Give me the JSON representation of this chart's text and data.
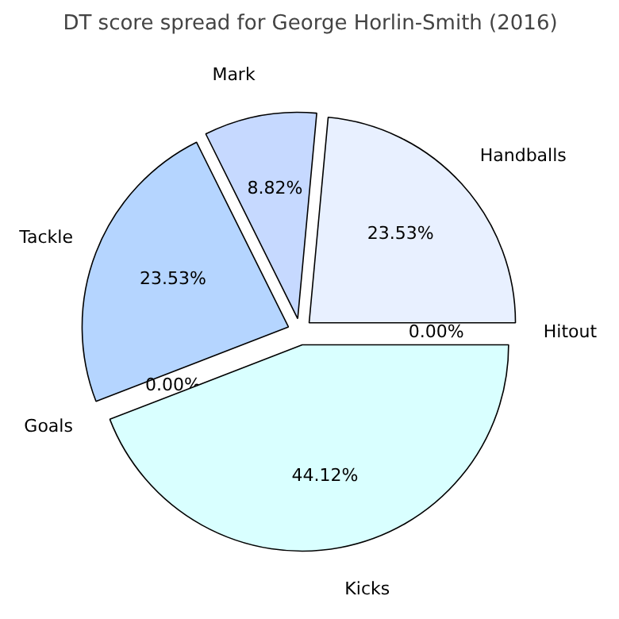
{
  "chart_data": {
    "type": "pie",
    "title": "DT score spread for George Horlin-Smith (2016)",
    "categories": [
      "Hitout",
      "Handballs",
      "Mark",
      "Tackle",
      "Goals",
      "Kicks"
    ],
    "values": [
      0.0,
      23.53,
      8.82,
      23.53,
      0.0,
      44.12
    ],
    "colors": [
      "#f0f0ff",
      "#e8f0ff",
      "#c6d9ff",
      "#b5d5ff",
      "#c0e0ff",
      "#d9ffff"
    ],
    "value_labels": [
      "0.00%",
      "23.53%",
      "8.82%",
      "23.53%",
      "0.00%",
      "44.12%"
    ]
  }
}
